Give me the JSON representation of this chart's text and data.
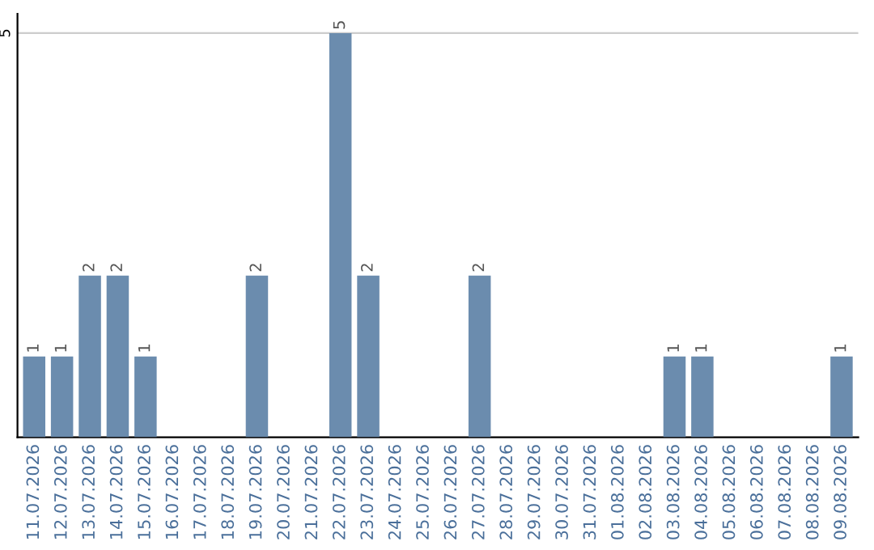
{
  "chart_data": {
    "type": "bar",
    "categories": [
      "11.07.2026",
      "12.07.2026",
      "13.07.2026",
      "14.07.2026",
      "15.07.2026",
      "16.07.2026",
      "17.07.2026",
      "18.07.2026",
      "19.07.2026",
      "20.07.2026",
      "21.07.2026",
      "22.07.2026",
      "23.07.2026",
      "24.07.2026",
      "25.07.2026",
      "26.07.2026",
      "27.07.2026",
      "28.07.2026",
      "29.07.2026",
      "30.07.2026",
      "31.07.2026",
      "01.08.2026",
      "02.08.2026",
      "03.08.2026",
      "04.08.2026",
      "05.08.2026",
      "06.08.2026",
      "07.08.2026",
      "08.08.2026",
      "09.08.2026"
    ],
    "values": [
      1,
      1,
      2,
      2,
      1,
      0,
      0,
      0,
      2,
      0,
      0,
      5,
      2,
      0,
      0,
      0,
      2,
      0,
      0,
      0,
      0,
      0,
      0,
      1,
      1,
      0,
      0,
      0,
      0,
      1
    ],
    "value_labels": [
      "1",
      "1",
      "2",
      "2",
      "1",
      null,
      null,
      null,
      "2",
      null,
      null,
      "5",
      "2",
      null,
      null,
      null,
      "2",
      null,
      null,
      null,
      null,
      null,
      null,
      "1",
      "1",
      null,
      null,
      null,
      null,
      "1"
    ],
    "color": "#6b8cae",
    "ylim": [
      0,
      5.24
    ],
    "yticks": [
      5
    ],
    "grid": "y",
    "legend": false
  }
}
